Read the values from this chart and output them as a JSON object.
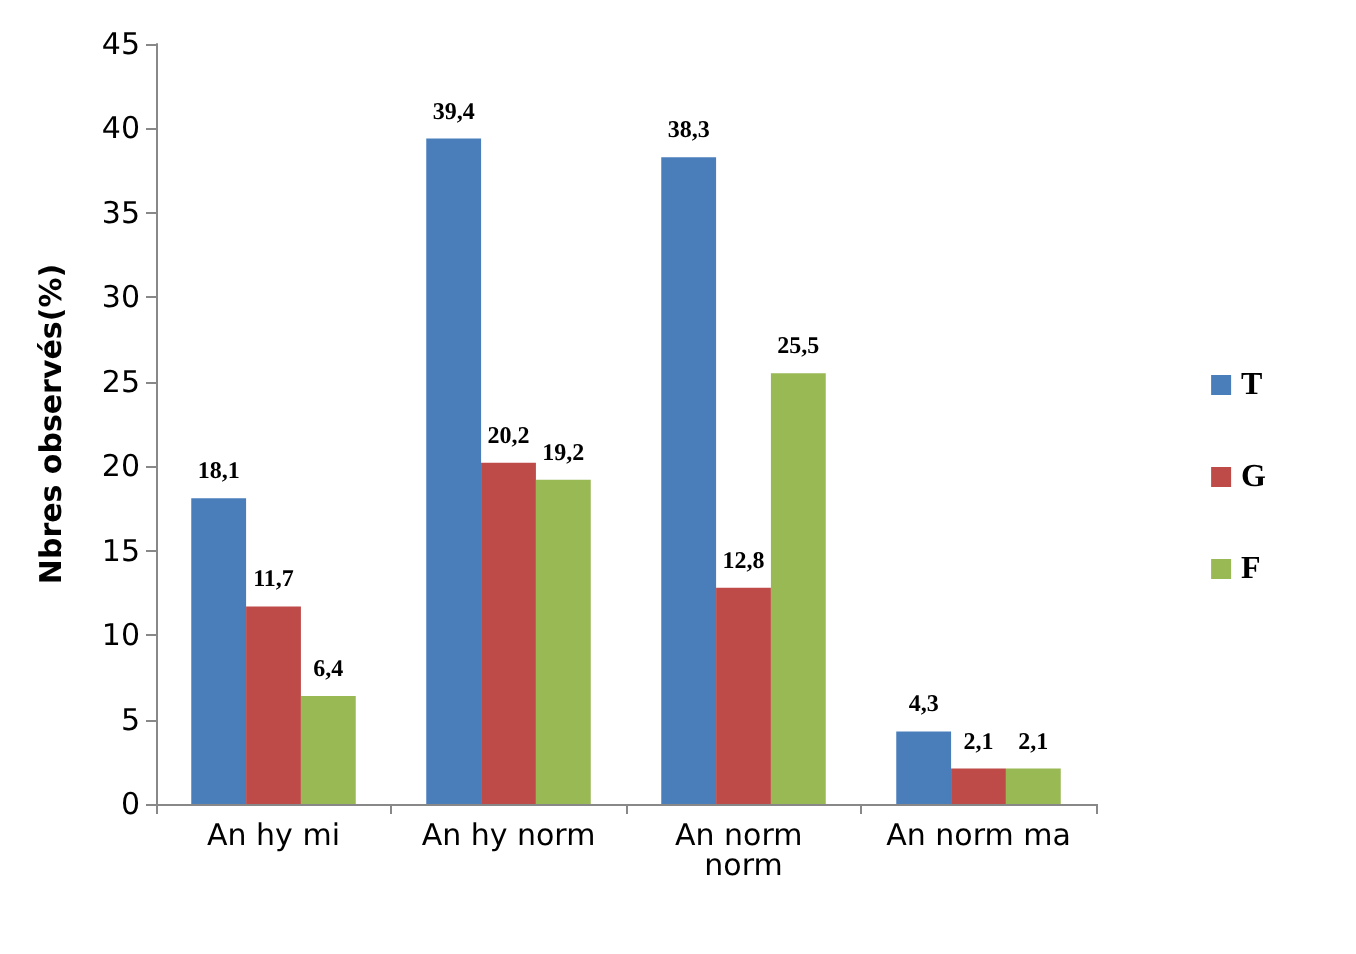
{
  "chart_data": {
    "type": "bar",
    "ylabel": "Nbres observés(%)",
    "categories": [
      "An hy mi",
      "An hy norm",
      "An norm norm",
      "An norm ma"
    ],
    "series": [
      {
        "name": "T",
        "color": "#4a7ebb",
        "values": [
          18.1,
          39.4,
          38.3,
          4.3
        ],
        "value_labels": [
          "18,1",
          "39,4",
          "38,3",
          "4,3"
        ]
      },
      {
        "name": "G",
        "color": "#be4b48",
        "values": [
          11.7,
          20.2,
          12.8,
          2.1
        ],
        "value_labels": [
          "11,7",
          "20,2",
          "12,8",
          "2,1"
        ]
      },
      {
        "name": "F",
        "color": "#98b954",
        "values": [
          6.4,
          19.2,
          25.5,
          2.1
        ],
        "value_labels": [
          "6,4",
          "19,2",
          "25,5",
          "2,1"
        ]
      }
    ],
    "ylim": [
      0,
      45
    ],
    "yticks": [
      0,
      5,
      10,
      15,
      20,
      25,
      30,
      35,
      40,
      45
    ],
    "grid": false,
    "legend": "right"
  }
}
